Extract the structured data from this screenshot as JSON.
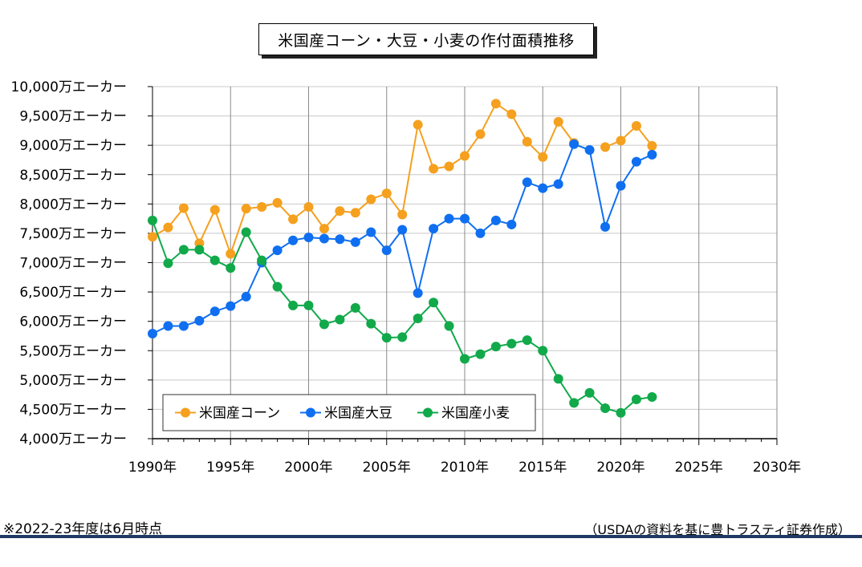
{
  "colors": {
    "corn": "#f5a01e",
    "soybean": "#0f6ff0",
    "wheat": "#11a94a",
    "bottom_rule": "#1f3864"
  },
  "chart_data": {
    "type": "line",
    "title": "米国産コーン・大豆・小麦の作付面積推移",
    "xlabel": "",
    "ylabel": "",
    "xlim": [
      1990,
      2030
    ],
    "ylim": [
      4000,
      10000
    ],
    "x_ticks": [
      1990,
      1995,
      2000,
      2005,
      2010,
      2015,
      2020,
      2025,
      2030
    ],
    "x_tick_labels": [
      "1990年",
      "1995年",
      "2000年",
      "2005年",
      "2010年",
      "2015年",
      "2020年",
      "2025年",
      "2030年"
    ],
    "y_ticks": [
      4000,
      4500,
      5000,
      5500,
      6000,
      6500,
      7000,
      7500,
      8000,
      8500,
      9000,
      9500,
      10000
    ],
    "y_tick_labels": [
      "4,000万エーカー",
      "4,500万エーカー",
      "5,000万エーカー",
      "5,500万エーカー",
      "6,000万エーカー",
      "6,500万エーカー",
      "7,000万エーカー",
      "7,500万エーカー",
      "8,000万エーカー",
      "8,500万エーカー",
      "9,000万エーカー",
      "9,500万エーカー",
      "10,000万エーカー"
    ],
    "grid": true,
    "legend_position": "bottom-left",
    "x": [
      1990,
      1991,
      1992,
      1993,
      1994,
      1995,
      1996,
      1997,
      1998,
      1999,
      2000,
      2001,
      2002,
      2003,
      2004,
      2005,
      2006,
      2007,
      2008,
      2009,
      2010,
      2011,
      2012,
      2013,
      2014,
      2015,
      2016,
      2017,
      2018,
      2019,
      2020,
      2021,
      2022
    ],
    "series": [
      {
        "name": "米国産コーン",
        "color_key": "corn",
        "values": [
          7440,
          7600,
          7930,
          7330,
          7900,
          7150,
          7920,
          7950,
          8020,
          7740,
          7950,
          7580,
          7880,
          7850,
          8080,
          8180,
          7820,
          9350,
          8600,
          8640,
          8820,
          9190,
          9710,
          9530,
          9060,
          8800,
          9400,
          9040,
          null,
          8970,
          9080,
          9330,
          8990
        ]
      },
      {
        "name": "米国産大豆",
        "color_key": "soybean",
        "values": [
          5790,
          5920,
          5920,
          6010,
          6170,
          6260,
          6420,
          7000,
          7210,
          7380,
          7430,
          7410,
          7400,
          7350,
          7520,
          7210,
          7560,
          6480,
          7580,
          7750,
          7750,
          7500,
          7720,
          7650,
          8370,
          8270,
          8340,
          9020,
          8920,
          7610,
          8310,
          8720,
          8840
        ]
      },
      {
        "name": "米国産小麦",
        "color_key": "wheat",
        "values": [
          7720,
          6990,
          7220,
          7220,
          7040,
          6910,
          7520,
          7040,
          6590,
          6270,
          6270,
          5950,
          6030,
          6230,
          5960,
          5720,
          5730,
          6050,
          6320,
          5920,
          5360,
          5440,
          5570,
          5620,
          5680,
          5500,
          5020,
          4610,
          4780,
          4520,
          4440,
          4670,
          4710
        ]
      }
    ]
  },
  "footnote_left": "※2022-23年度は6月時点",
  "footnote_right": "（USDAの資料を基に豊トラスティ証券作成）"
}
